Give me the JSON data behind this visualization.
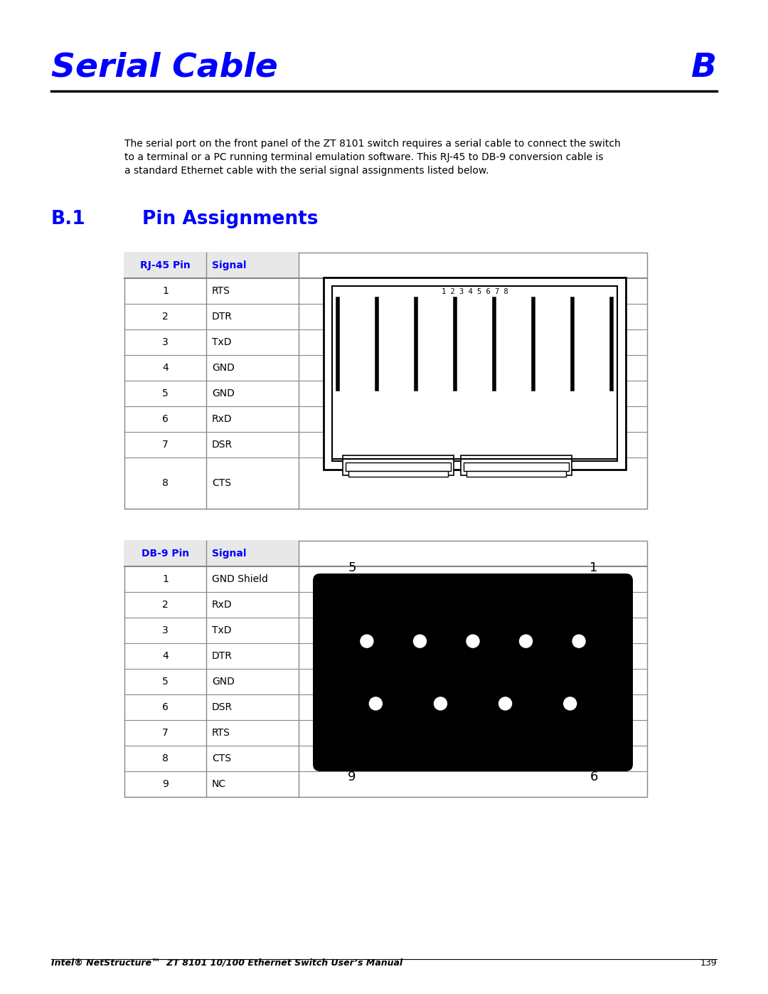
{
  "title": "Serial Cable",
  "title_right": "B",
  "title_color": "#0000FF",
  "section_title_B1": "B.1",
  "section_title_main": "Pin Assignments",
  "section_color": "#0000FF",
  "body_text_line1": "The serial port on the front panel of the ZT 8101 switch requires a serial cable to connect the switch",
  "body_text_line2": "to a terminal or a PC running terminal emulation software. This RJ-45 to DB-9 conversion cable is",
  "body_text_line3": "a standard Ethernet cable with the serial signal assignments listed below.",
  "rj45_header": [
    "RJ-45 Pin",
    "Signal"
  ],
  "rj45_rows": [
    [
      "1",
      "RTS"
    ],
    [
      "2",
      "DTR"
    ],
    [
      "3",
      "TxD"
    ],
    [
      "4",
      "GND"
    ],
    [
      "5",
      "GND"
    ],
    [
      "6",
      "RxD"
    ],
    [
      "7",
      "DSR"
    ],
    [
      "8",
      "CTS"
    ]
  ],
  "db9_header": [
    "DB-9 Pin",
    "Signal"
  ],
  "db9_rows": [
    [
      "1",
      "GND Shield"
    ],
    [
      "2",
      "RxD"
    ],
    [
      "3",
      "TxD"
    ],
    [
      "4",
      "DTR"
    ],
    [
      "5",
      "GND"
    ],
    [
      "6",
      "DSR"
    ],
    [
      "7",
      "RTS"
    ],
    [
      "8",
      "CTS"
    ],
    [
      "9",
      "NC"
    ]
  ],
  "header_color": "#0000FF",
  "footer_text": "Intel® NetStructure™  ZT 8101 10/100 Ethernet Switch User’s Manual",
  "footer_page": "139",
  "bg_color": "#FFFFFF",
  "table_border": "#888888"
}
